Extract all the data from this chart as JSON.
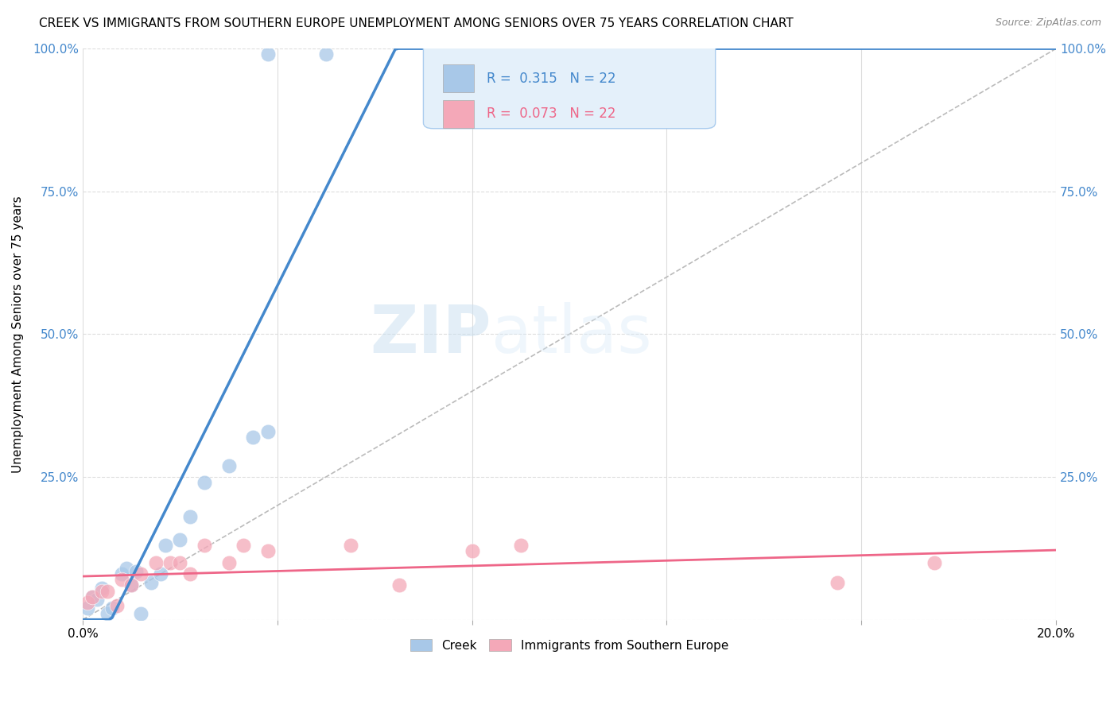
{
  "title": "CREEK VS IMMIGRANTS FROM SOUTHERN EUROPE UNEMPLOYMENT AMONG SENIORS OVER 75 YEARS CORRELATION CHART",
  "source": "Source: ZipAtlas.com",
  "ylabel": "Unemployment Among Seniors over 75 years",
  "xmin": 0.0,
  "xmax": 0.2,
  "ymin": 0.0,
  "ymax": 1.0,
  "creek_R": 0.315,
  "creek_N": 22,
  "immig_R": 0.073,
  "immig_N": 22,
  "creek_color": "#a8c8e8",
  "immig_color": "#f4a8b8",
  "creek_line_color": "#4488cc",
  "immig_line_color": "#ee6688",
  "diagonal_color": "#bbbbbb",
  "creek_x": [
    0.001,
    0.002,
    0.003,
    0.004,
    0.005,
    0.006,
    0.008,
    0.009,
    0.01,
    0.011,
    0.012,
    0.014,
    0.016,
    0.017,
    0.02,
    0.022,
    0.025,
    0.03,
    0.035,
    0.038,
    0.038,
    0.05
  ],
  "creek_y": [
    0.02,
    0.04,
    0.035,
    0.055,
    0.01,
    0.02,
    0.08,
    0.09,
    0.06,
    0.085,
    0.01,
    0.065,
    0.08,
    0.13,
    0.14,
    0.18,
    0.24,
    0.27,
    0.32,
    0.33,
    0.99,
    0.99
  ],
  "immig_x": [
    0.001,
    0.002,
    0.004,
    0.005,
    0.007,
    0.008,
    0.01,
    0.012,
    0.015,
    0.018,
    0.02,
    0.022,
    0.025,
    0.03,
    0.033,
    0.038,
    0.055,
    0.065,
    0.08,
    0.09,
    0.155,
    0.175
  ],
  "immig_y": [
    0.03,
    0.04,
    0.05,
    0.05,
    0.025,
    0.07,
    0.06,
    0.08,
    0.1,
    0.1,
    0.1,
    0.08,
    0.13,
    0.1,
    0.13,
    0.12,
    0.13,
    0.06,
    0.12,
    0.13,
    0.065,
    0.1
  ],
  "legend_box_color": "#e4f0fa",
  "legend_border_color": "#aaccee",
  "watermark_zip": "ZIP",
  "watermark_atlas": "atlas",
  "grid_color": "#dddddd",
  "tick_color": "#4488cc",
  "ytick_positions": [
    0.0,
    0.25,
    0.5,
    0.75,
    1.0
  ],
  "ytick_right_positions": [
    0.25,
    0.5,
    0.75,
    1.0
  ],
  "xtick_positions": [
    0.0,
    0.04,
    0.08,
    0.12,
    0.16,
    0.2
  ]
}
